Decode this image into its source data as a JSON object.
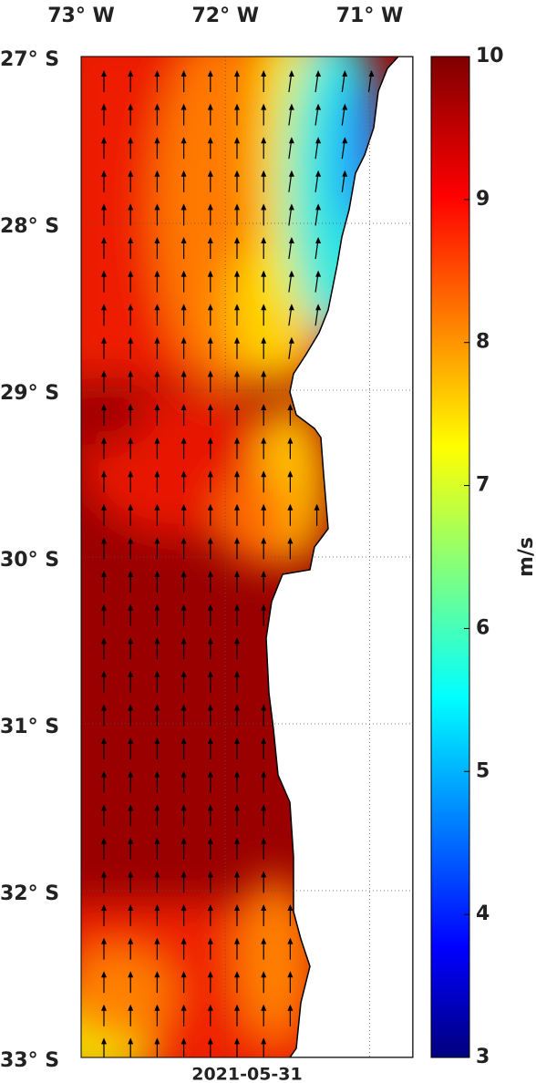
{
  "map": {
    "xlim": [
      -73,
      -70.7
    ],
    "ylim": [
      -33,
      -27
    ],
    "lon_ticks": [
      {
        "value": -73,
        "label": "73° W"
      },
      {
        "value": -72,
        "label": "72° W"
      },
      {
        "value": -71,
        "label": "71° W"
      }
    ],
    "lat_ticks": [
      {
        "value": -27,
        "label": "27° S"
      },
      {
        "value": -28,
        "label": "28° S"
      },
      {
        "value": -29,
        "label": "29° S"
      },
      {
        "value": -30,
        "label": "30° S"
      },
      {
        "value": -31,
        "label": "31° S"
      },
      {
        "value": -32,
        "label": "32° S"
      },
      {
        "value": -33,
        "label": "33° S"
      }
    ],
    "date": "2021-05-31"
  },
  "colorbar": {
    "label": "m/s",
    "range": [
      3,
      10
    ],
    "ticks": [
      3,
      4,
      5,
      6,
      7,
      8,
      9,
      10
    ]
  }
}
